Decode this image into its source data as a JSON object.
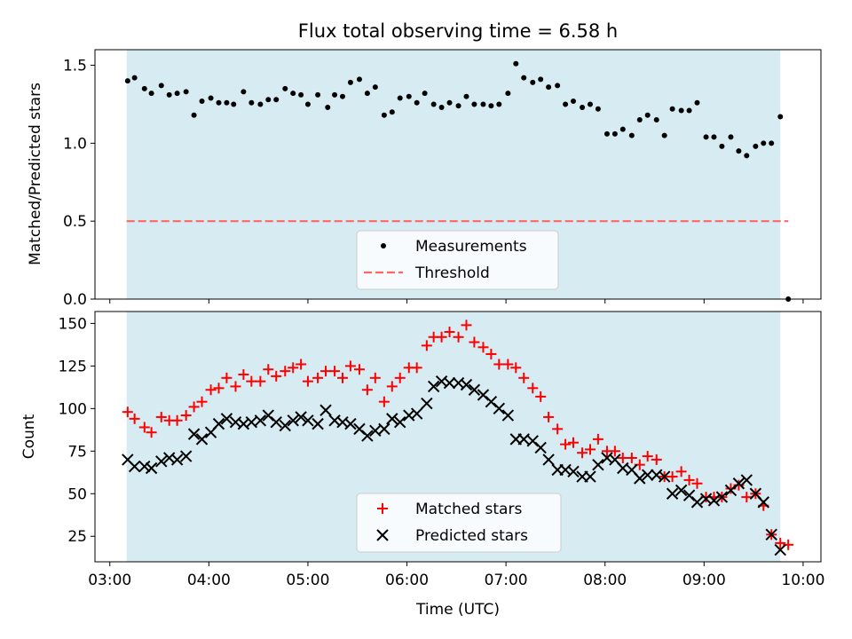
{
  "chart_data": {
    "type": "scatter",
    "title": "Flux total observing time = 6.58 h",
    "xlabel": "Time (UTC)",
    "x_tick_labels": [
      "03:00",
      "04:00",
      "05:00",
      "06:00",
      "07:00",
      "08:00",
      "09:00",
      "10:00"
    ],
    "x_tick_hours": [
      3,
      4,
      5,
      6,
      7,
      8,
      9,
      10
    ],
    "xlim_hours": [
      2.85,
      10.18
    ],
    "observing_window_hours": [
      3.17,
      9.77
    ],
    "shade_color": "#add8e6",
    "panels": [
      {
        "ylabel": "Matched/Predicted stars",
        "ylim": [
          0,
          1.6
        ],
        "y_ticks": [
          0,
          0.5,
          1.0,
          1.5
        ],
        "y_tick_labels": [
          "0.0",
          "0.5",
          "1.0",
          "1.5"
        ],
        "legend": [
          "Measurements",
          "Threshold"
        ],
        "threshold": {
          "label": "Threshold",
          "value": 0.5,
          "x_range_hours": [
            3.17,
            9.85
          ],
          "color": "#ff6666"
        },
        "series": [
          {
            "name": "Measurements",
            "marker": "dot",
            "color": "#000000",
            "x_hours": [
              3.18,
              3.25,
              3.35,
              3.42,
              3.52,
              3.6,
              3.68,
              3.77,
              3.85,
              3.93,
              4.02,
              4.1,
              4.18,
              4.25,
              4.35,
              4.43,
              4.52,
              4.6,
              4.68,
              4.77,
              4.85,
              4.93,
              5.0,
              5.1,
              5.2,
              5.27,
              5.35,
              5.43,
              5.52,
              5.6,
              5.68,
              5.77,
              5.85,
              5.93,
              6.02,
              6.1,
              6.18,
              6.27,
              6.35,
              6.43,
              6.52,
              6.6,
              6.68,
              6.77,
              6.85,
              6.93,
              7.02,
              7.1,
              7.18,
              7.27,
              7.35,
              7.43,
              7.52,
              7.6,
              7.68,
              7.77,
              7.85,
              7.93,
              8.02,
              8.1,
              8.18,
              8.27,
              8.35,
              8.43,
              8.52,
              8.6,
              8.68,
              8.77,
              8.85,
              8.93,
              9.02,
              9.1,
              9.18,
              9.27,
              9.35,
              9.43,
              9.52,
              9.6,
              9.68,
              9.77,
              9.85
            ],
            "values": [
              1.4,
              1.42,
              1.35,
              1.32,
              1.37,
              1.31,
              1.32,
              1.33,
              1.18,
              1.27,
              1.29,
              1.26,
              1.26,
              1.25,
              1.33,
              1.26,
              1.25,
              1.28,
              1.28,
              1.35,
              1.32,
              1.31,
              1.25,
              1.31,
              1.23,
              1.31,
              1.3,
              1.39,
              1.41,
              1.32,
              1.36,
              1.18,
              1.2,
              1.29,
              1.3,
              1.26,
              1.32,
              1.25,
              1.23,
              1.26,
              1.24,
              1.3,
              1.25,
              1.25,
              1.24,
              1.25,
              1.32,
              1.51,
              1.42,
              1.39,
              1.41,
              1.36,
              1.37,
              1.25,
              1.27,
              1.23,
              1.25,
              1.22,
              1.06,
              1.06,
              1.09,
              1.05,
              1.15,
              1.18,
              1.15,
              1.05,
              1.22,
              1.21,
              1.21,
              1.26,
              1.04,
              1.04,
              0.98,
              1.04,
              0.95,
              0.92,
              0.98,
              1.0,
              1.0,
              1.17,
              0.0
            ]
          }
        ]
      },
      {
        "ylabel": "Count",
        "ylim": [
          10,
          157
        ],
        "y_ticks": [
          25,
          50,
          75,
          100,
          125,
          150
        ],
        "y_tick_labels": [
          "25",
          "50",
          "75",
          "100",
          "125",
          "150"
        ],
        "legend": [
          "Matched stars",
          "Predicted stars"
        ],
        "series": [
          {
            "name": "Matched stars",
            "marker": "plus",
            "color": "#ff0000",
            "x_hours": [
              3.18,
              3.25,
              3.35,
              3.42,
              3.52,
              3.6,
              3.68,
              3.77,
              3.85,
              3.93,
              4.02,
              4.1,
              4.18,
              4.27,
              4.35,
              4.43,
              4.52,
              4.6,
              4.68,
              4.77,
              4.85,
              4.93,
              5.0,
              5.1,
              5.18,
              5.27,
              5.35,
              5.43,
              5.52,
              5.6,
              5.68,
              5.77,
              5.85,
              5.93,
              6.02,
              6.1,
              6.2,
              6.27,
              6.35,
              6.43,
              6.52,
              6.6,
              6.68,
              6.77,
              6.85,
              6.93,
              7.02,
              7.1,
              7.18,
              7.27,
              7.35,
              7.43,
              7.52,
              7.6,
              7.68,
              7.77,
              7.85,
              7.93,
              8.02,
              8.1,
              8.18,
              8.27,
              8.35,
              8.43,
              8.52,
              8.6,
              8.68,
              8.77,
              8.85,
              8.93,
              9.02,
              9.1,
              9.18,
              9.27,
              9.35,
              9.43,
              9.52,
              9.6,
              9.68,
              9.77,
              9.85
            ],
            "values": [
              98,
              94,
              89,
              86,
              95,
              93,
              93,
              96,
              101,
              104,
              111,
              112,
              118,
              113,
              120,
              116,
              116,
              123,
              119,
              122,
              124,
              126,
              116,
              118,
              122,
              122,
              118,
              125,
              123,
              111,
              118,
              104,
              113,
              118,
              124,
              124,
              137,
              142,
              142,
              145,
              142,
              149,
              139,
              136,
              132,
              126,
              126,
              124,
              118,
              112,
              107,
              95,
              88,
              79,
              80,
              74,
              76,
              82,
              75,
              75,
              71,
              71,
              67,
              72,
              70,
              60,
              60,
              63,
              58,
              56,
              48,
              48,
              48,
              53,
              55,
              48,
              50,
              43,
              26,
              21,
              20
            ]
          },
          {
            "name": "Predicted stars",
            "marker": "x",
            "color": "#000000",
            "x_hours": [
              3.18,
              3.25,
              3.35,
              3.42,
              3.52,
              3.6,
              3.68,
              3.77,
              3.85,
              3.93,
              4.02,
              4.1,
              4.18,
              4.27,
              4.35,
              4.43,
              4.52,
              4.6,
              4.68,
              4.77,
              4.85,
              4.93,
              5.0,
              5.1,
              5.18,
              5.27,
              5.35,
              5.43,
              5.52,
              5.6,
              5.68,
              5.77,
              5.85,
              5.93,
              6.02,
              6.1,
              6.2,
              6.27,
              6.35,
              6.43,
              6.52,
              6.6,
              6.68,
              6.77,
              6.85,
              6.93,
              7.02,
              7.1,
              7.18,
              7.27,
              7.35,
              7.43,
              7.52,
              7.6,
              7.68,
              7.77,
              7.85,
              7.93,
              8.02,
              8.1,
              8.18,
              8.27,
              8.35,
              8.43,
              8.52,
              8.6,
              8.68,
              8.77,
              8.85,
              8.93,
              9.02,
              9.1,
              9.18,
              9.27,
              9.35,
              9.43,
              9.52,
              9.6,
              9.68,
              9.77
            ],
            "values": [
              70,
              66,
              66,
              65,
              69,
              71,
              70,
              72,
              85,
              82,
              86,
              91,
              94,
              92,
              91,
              92,
              93,
              96,
              92,
              90,
              93,
              95,
              93,
              91,
              99,
              93,
              92,
              91,
              88,
              84,
              87,
              88,
              94,
              92,
              96,
              97,
              103,
              113,
              116,
              115,
              115,
              114,
              111,
              108,
              104,
              100,
              96,
              82,
              82,
              81,
              77,
              70,
              64,
              64,
              63,
              60,
              60,
              67,
              71,
              70,
              65,
              64,
              59,
              61,
              61,
              60,
              50,
              52,
              49,
              45,
              47,
              46,
              48,
              52,
              56,
              58,
              50,
              45,
              26,
              17
            ]
          }
        ]
      }
    ]
  }
}
